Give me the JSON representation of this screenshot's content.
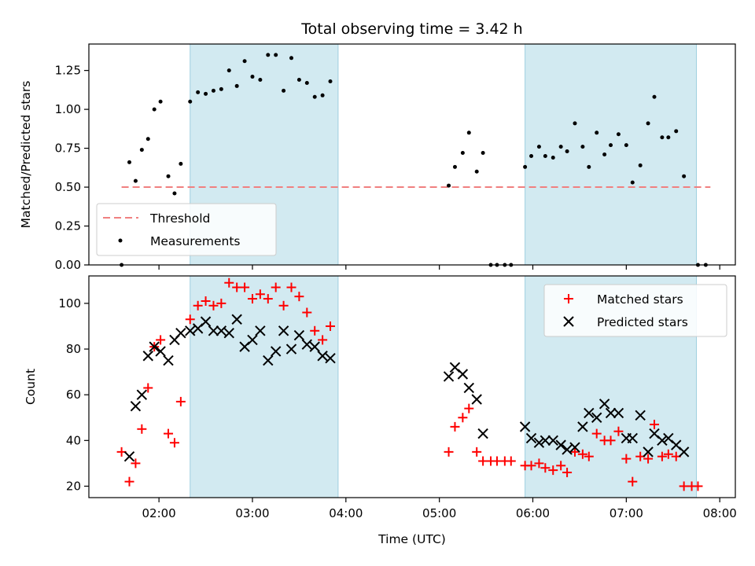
{
  "chart_data": [
    {
      "type": "scatter",
      "title": "Total observing time = 3.42 h",
      "xlabel": "",
      "ylabel": "Matched/Predicted stars",
      "ylim": [
        0,
        1.42
      ],
      "yticks": [
        "0.00",
        "0.25",
        "0.50",
        "0.75",
        "1.00",
        "1.25"
      ],
      "ytick_values": [
        0,
        0.25,
        0.5,
        0.75,
        1.0,
        1.25
      ],
      "threshold": {
        "name": "Threshold",
        "value": 0.5,
        "x_start": "01:36",
        "x_end": "07:54",
        "color": "#f08080"
      },
      "shaded_intervals": [
        [
          "02:20",
          "03:55"
        ],
        [
          "05:55",
          "07:45"
        ]
      ],
      "shade_color": "#add8e6",
      "legend": {
        "placement": "lower-left",
        "entries": [
          "Threshold",
          "Measurements"
        ]
      },
      "series": [
        {
          "name": "Measurements",
          "color": "#000000",
          "points": [
            [
              "01:36",
              0.0
            ],
            [
              "01:41",
              0.66
            ],
            [
              "01:45",
              0.54
            ],
            [
              "01:49",
              0.74
            ],
            [
              "01:53",
              0.81
            ],
            [
              "01:57",
              1.0
            ],
            [
              "02:01",
              1.05
            ],
            [
              "02:06",
              0.57
            ],
            [
              "02:10",
              0.46
            ],
            [
              "02:14",
              0.65
            ],
            [
              "02:20",
              1.05
            ],
            [
              "02:25",
              1.11
            ],
            [
              "02:30",
              1.1
            ],
            [
              "02:35",
              1.12
            ],
            [
              "02:40",
              1.13
            ],
            [
              "02:45",
              1.25
            ],
            [
              "02:50",
              1.15
            ],
            [
              "02:55",
              1.31
            ],
            [
              "03:00",
              1.21
            ],
            [
              "03:05",
              1.19
            ],
            [
              "03:10",
              1.35
            ],
            [
              "03:15",
              1.35
            ],
            [
              "03:20",
              1.12
            ],
            [
              "03:25",
              1.33
            ],
            [
              "03:30",
              1.19
            ],
            [
              "03:35",
              1.17
            ],
            [
              "03:40",
              1.08
            ],
            [
              "03:45",
              1.09
            ],
            [
              "03:50",
              1.18
            ],
            [
              "05:06",
              0.51
            ],
            [
              "05:10",
              0.63
            ],
            [
              "05:15",
              0.72
            ],
            [
              "05:19",
              0.85
            ],
            [
              "05:24",
              0.6
            ],
            [
              "05:28",
              0.72
            ],
            [
              "05:33",
              0.0
            ],
            [
              "05:37",
              0.0
            ],
            [
              "05:42",
              0.0
            ],
            [
              "05:46",
              0.0
            ],
            [
              "05:55",
              0.63
            ],
            [
              "05:59",
              0.7
            ],
            [
              "06:04",
              0.76
            ],
            [
              "06:08",
              0.7
            ],
            [
              "06:13",
              0.69
            ],
            [
              "06:18",
              0.76
            ],
            [
              "06:22",
              0.73
            ],
            [
              "06:27",
              0.91
            ],
            [
              "06:32",
              0.76
            ],
            [
              "06:36",
              0.63
            ],
            [
              "06:41",
              0.85
            ],
            [
              "06:46",
              0.71
            ],
            [
              "06:50",
              0.77
            ],
            [
              "06:55",
              0.84
            ],
            [
              "07:00",
              0.77
            ],
            [
              "07:04",
              0.53
            ],
            [
              "07:09",
              0.64
            ],
            [
              "07:14",
              0.91
            ],
            [
              "07:18",
              1.08
            ],
            [
              "07:23",
              0.82
            ],
            [
              "07:27",
              0.82
            ],
            [
              "07:32",
              0.86
            ],
            [
              "07:37",
              0.57
            ],
            [
              "07:46",
              0.0
            ],
            [
              "07:51",
              0.0
            ]
          ]
        }
      ]
    },
    {
      "type": "scatter",
      "title": "",
      "xlabel": "Time (UTC)",
      "ylabel": "Count",
      "ylim": [
        15,
        112
      ],
      "yticks": [
        "20",
        "40",
        "60",
        "80",
        "100"
      ],
      "ytick_values": [
        20,
        40,
        60,
        80,
        100
      ],
      "xticks": [
        "02:00",
        "03:00",
        "04:00",
        "05:00",
        "06:00",
        "07:00",
        "08:00"
      ],
      "xlim": [
        "01:15",
        "08:10"
      ],
      "shaded_intervals": [
        [
          "02:20",
          "03:55"
        ],
        [
          "05:55",
          "07:45"
        ]
      ],
      "legend": {
        "placement": "upper-right",
        "entries": [
          "Matched stars",
          "Predicted stars"
        ]
      },
      "series": [
        {
          "name": "Matched stars",
          "marker": "plus",
          "color": "#ff0000",
          "points": [
            [
              "01:36",
              35
            ],
            [
              "01:41",
              22
            ],
            [
              "01:45",
              30
            ],
            [
              "01:49",
              45
            ],
            [
              "01:53",
              63
            ],
            [
              "01:57",
              81
            ],
            [
              "02:01",
              84
            ],
            [
              "02:06",
              43
            ],
            [
              "02:10",
              39
            ],
            [
              "02:14",
              57
            ],
            [
              "02:20",
              93
            ],
            [
              "02:25",
              99
            ],
            [
              "02:30",
              101
            ],
            [
              "02:35",
              99
            ],
            [
              "02:40",
              100
            ],
            [
              "02:45",
              109
            ],
            [
              "02:50",
              107
            ],
            [
              "02:55",
              107
            ],
            [
              "03:00",
              102
            ],
            [
              "03:05",
              104
            ],
            [
              "03:10",
              102
            ],
            [
              "03:15",
              107
            ],
            [
              "03:20",
              99
            ],
            [
              "03:25",
              107
            ],
            [
              "03:30",
              103
            ],
            [
              "03:35",
              96
            ],
            [
              "03:40",
              88
            ],
            [
              "03:45",
              84
            ],
            [
              "03:50",
              90
            ],
            [
              "05:06",
              35
            ],
            [
              "05:10",
              46
            ],
            [
              "05:15",
              50
            ],
            [
              "05:19",
              54
            ],
            [
              "05:24",
              35
            ],
            [
              "05:28",
              31
            ],
            [
              "05:33",
              31
            ],
            [
              "05:37",
              31
            ],
            [
              "05:42",
              31
            ],
            [
              "05:46",
              31
            ],
            [
              "05:55",
              29
            ],
            [
              "05:59",
              29
            ],
            [
              "06:04",
              30
            ],
            [
              "06:08",
              28
            ],
            [
              "06:13",
              27
            ],
            [
              "06:18",
              29
            ],
            [
              "06:22",
              26
            ],
            [
              "06:27",
              35
            ],
            [
              "06:32",
              34
            ],
            [
              "06:36",
              33
            ],
            [
              "06:41",
              43
            ],
            [
              "06:46",
              40
            ],
            [
              "06:50",
              40
            ],
            [
              "06:55",
              44
            ],
            [
              "07:00",
              32
            ],
            [
              "07:04",
              22
            ],
            [
              "07:09",
              33
            ],
            [
              "07:14",
              32
            ],
            [
              "07:18",
              47
            ],
            [
              "07:23",
              33
            ],
            [
              "07:27",
              34
            ],
            [
              "07:32",
              33
            ],
            [
              "07:37",
              20
            ],
            [
              "07:42",
              20
            ],
            [
              "07:46",
              20
            ]
          ]
        },
        {
          "name": "Predicted stars",
          "marker": "x",
          "color": "#000000",
          "points": [
            [
              "01:41",
              33
            ],
            [
              "01:45",
              55
            ],
            [
              "01:49",
              60
            ],
            [
              "01:53",
              77
            ],
            [
              "01:57",
              81
            ],
            [
              "02:01",
              79
            ],
            [
              "02:06",
              75
            ],
            [
              "02:10",
              84
            ],
            [
              "02:14",
              87
            ],
            [
              "02:20",
              88
            ],
            [
              "02:25",
              89
            ],
            [
              "02:30",
              92
            ],
            [
              "02:35",
              88
            ],
            [
              "02:40",
              88
            ],
            [
              "02:45",
              87
            ],
            [
              "02:50",
              93
            ],
            [
              "02:55",
              81
            ],
            [
              "03:00",
              84
            ],
            [
              "03:05",
              88
            ],
            [
              "03:10",
              75
            ],
            [
              "03:15",
              79
            ],
            [
              "03:20",
              88
            ],
            [
              "03:25",
              80
            ],
            [
              "03:30",
              86
            ],
            [
              "03:35",
              82
            ],
            [
              "03:40",
              81
            ],
            [
              "03:45",
              77
            ],
            [
              "03:50",
              76
            ],
            [
              "05:06",
              68
            ],
            [
              "05:10",
              72
            ],
            [
              "05:15",
              69
            ],
            [
              "05:19",
              63
            ],
            [
              "05:24",
              58
            ],
            [
              "05:28",
              43
            ],
            [
              "05:55",
              46
            ],
            [
              "05:59",
              41
            ],
            [
              "06:04",
              39
            ],
            [
              "06:08",
              40
            ],
            [
              "06:13",
              40
            ],
            [
              "06:18",
              38
            ],
            [
              "06:22",
              36
            ],
            [
              "06:27",
              37
            ],
            [
              "06:32",
              46
            ],
            [
              "06:36",
              52
            ],
            [
              "06:41",
              50
            ],
            [
              "06:46",
              56
            ],
            [
              "06:50",
              52
            ],
            [
              "06:55",
              52
            ],
            [
              "07:00",
              41
            ],
            [
              "07:04",
              41
            ],
            [
              "07:09",
              51
            ],
            [
              "07:14",
              35
            ],
            [
              "07:18",
              43
            ],
            [
              "07:23",
              40
            ],
            [
              "07:27",
              41
            ],
            [
              "07:32",
              38
            ],
            [
              "07:37",
              35
            ]
          ]
        }
      ]
    }
  ]
}
